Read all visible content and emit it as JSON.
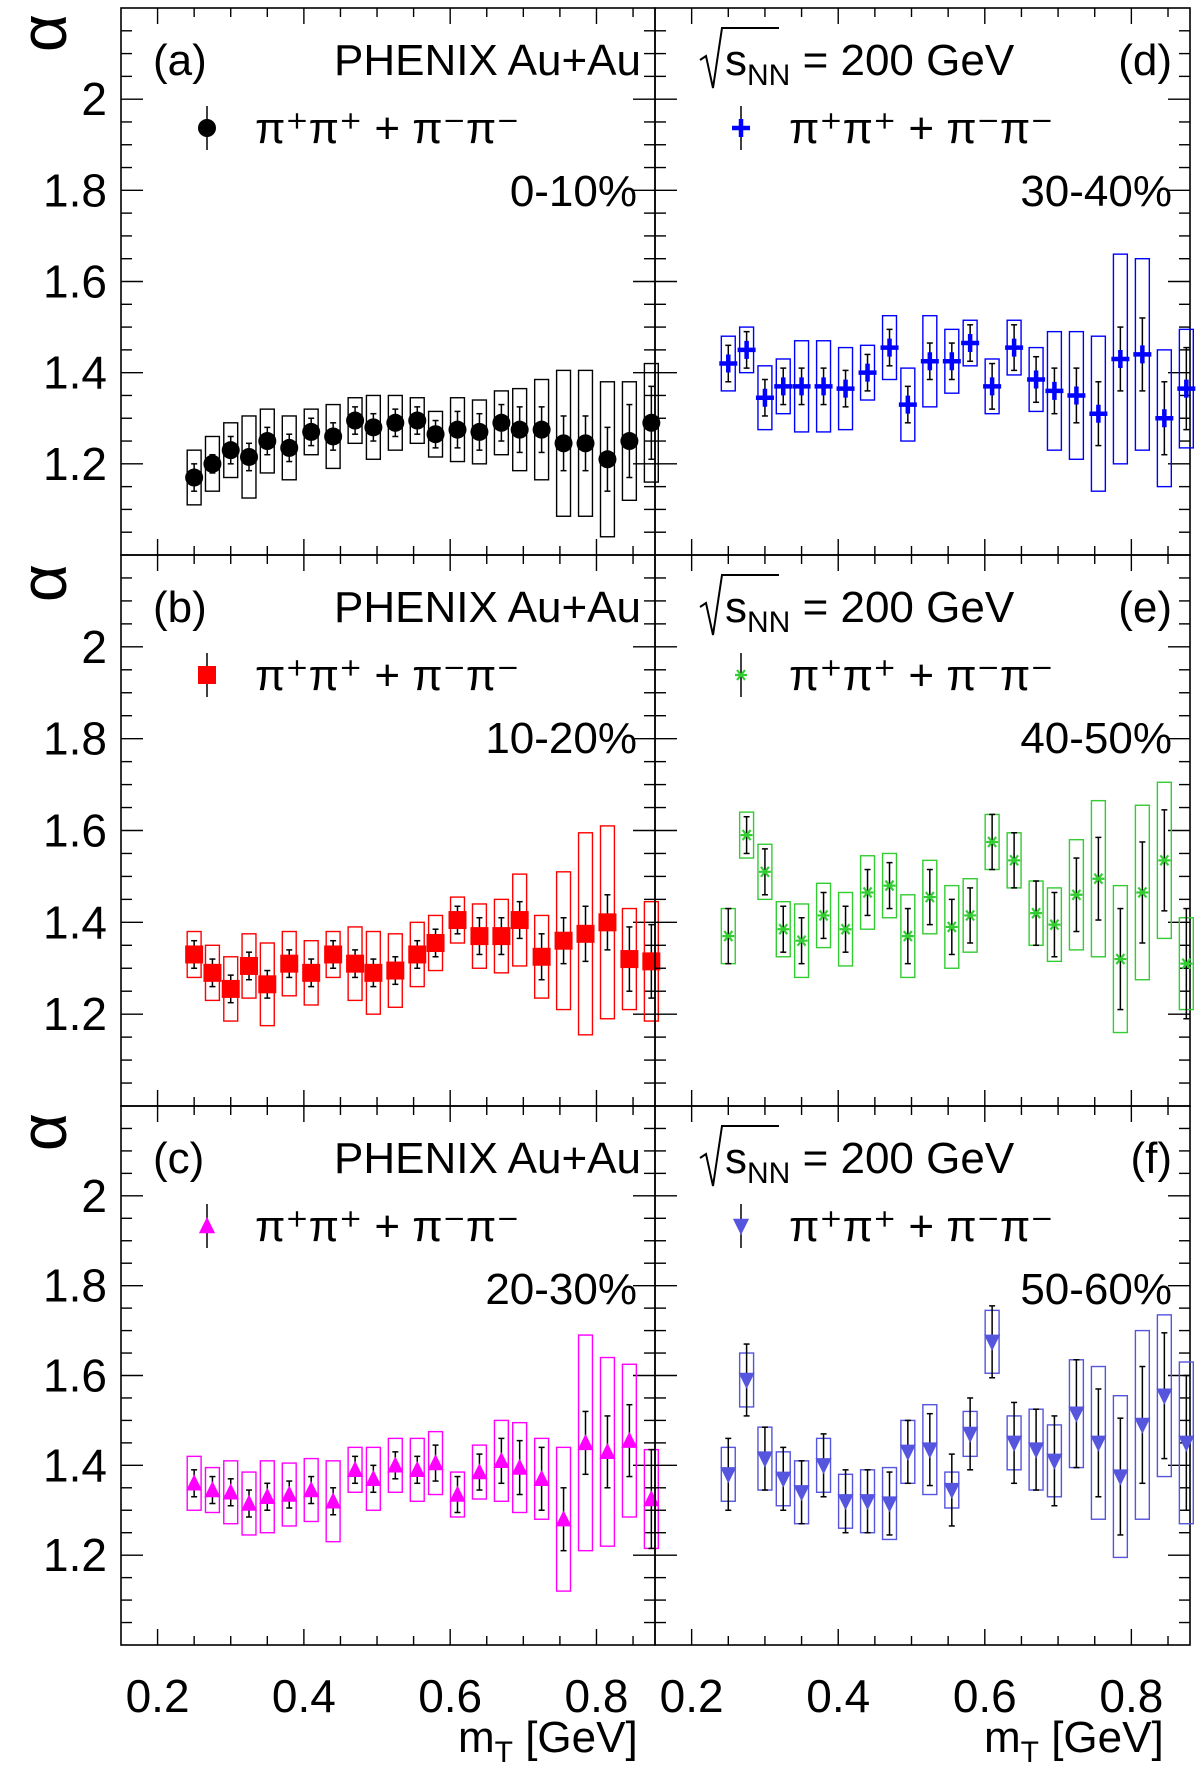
{
  "figure": {
    "ylabel": "α",
    "xlabel": "m",
    "xlabel_sub": "T",
    "xlabel_unit": " [GeV]"
  },
  "chart_data": [
    {
      "type": "scatter",
      "panel": "a",
      "tag": "(a)",
      "header": "PHENIX Au+Au",
      "header_kind": "experiment",
      "legend": "π⁺π⁺ + π⁻π⁻",
      "centrality": "0-10%",
      "marker": "circle",
      "color": "#000000",
      "xlim": [
        0.15,
        0.88
      ],
      "ylim": [
        1.0,
        2.2
      ],
      "x_ticks": [
        "0.2",
        "0.4",
        "0.6",
        "0.8"
      ],
      "y_ticks": [
        "1.2",
        "1.4",
        "1.6",
        "1.8",
        "2"
      ],
      "x": [
        0.25,
        0.275,
        0.3,
        0.325,
        0.35,
        0.38,
        0.41,
        0.44,
        0.47,
        0.495,
        0.525,
        0.555,
        0.58,
        0.61,
        0.64,
        0.67,
        0.695,
        0.725,
        0.755,
        0.785,
        0.815,
        0.845,
        0.875
      ],
      "y": [
        1.17,
        1.2,
        1.23,
        1.215,
        1.25,
        1.235,
        1.27,
        1.26,
        1.295,
        1.28,
        1.29,
        1.295,
        1.265,
        1.275,
        1.27,
        1.29,
        1.275,
        1.275,
        1.245,
        1.245,
        1.21,
        1.25,
        1.29
      ],
      "stat": [
        0.03,
        0.02,
        0.03,
        0.03,
        0.03,
        0.03,
        0.03,
        0.03,
        0.03,
        0.03,
        0.03,
        0.03,
        0.03,
        0.04,
        0.04,
        0.04,
        0.05,
        0.05,
        0.06,
        0.06,
        0.07,
        0.08,
        0.08
      ],
      "syst": [
        0.06,
        0.06,
        0.06,
        0.09,
        0.07,
        0.07,
        0.05,
        0.07,
        0.05,
        0.07,
        0.06,
        0.05,
        0.05,
        0.07,
        0.07,
        0.07,
        0.09,
        0.11,
        0.16,
        0.16,
        0.17,
        0.13,
        0.13
      ]
    },
    {
      "type": "scatter",
      "panel": "b",
      "tag": "(b)",
      "header": "PHENIX Au+Au",
      "header_kind": "experiment",
      "legend": "π⁺π⁺ + π⁻π⁻",
      "centrality": "10-20%",
      "marker": "square",
      "color": "#ff0000",
      "xlim": [
        0.15,
        0.88
      ],
      "ylim": [
        1.0,
        2.2
      ],
      "x_ticks": [
        "0.2",
        "0.4",
        "0.6",
        "0.8"
      ],
      "y_ticks": [
        "1.2",
        "1.4",
        "1.6",
        "1.8",
        "2"
      ],
      "x": [
        0.25,
        0.275,
        0.3,
        0.325,
        0.35,
        0.38,
        0.41,
        0.44,
        0.47,
        0.495,
        0.525,
        0.555,
        0.58,
        0.61,
        0.64,
        0.67,
        0.695,
        0.725,
        0.755,
        0.785,
        0.815,
        0.845,
        0.875
      ],
      "y": [
        1.33,
        1.29,
        1.255,
        1.305,
        1.265,
        1.31,
        1.29,
        1.33,
        1.31,
        1.29,
        1.295,
        1.33,
        1.355,
        1.405,
        1.37,
        1.37,
        1.405,
        1.325,
        1.36,
        1.375,
        1.4,
        1.32,
        1.315
      ],
      "stat": [
        0.03,
        0.03,
        0.03,
        0.03,
        0.03,
        0.03,
        0.03,
        0.03,
        0.03,
        0.03,
        0.03,
        0.03,
        0.03,
        0.03,
        0.04,
        0.04,
        0.04,
        0.05,
        0.05,
        0.06,
        0.06,
        0.07,
        0.08
      ],
      "syst": [
        0.05,
        0.06,
        0.07,
        0.07,
        0.09,
        0.07,
        0.07,
        0.05,
        0.08,
        0.09,
        0.08,
        0.07,
        0.06,
        0.05,
        0.07,
        0.08,
        0.1,
        0.09,
        0.15,
        0.22,
        0.21,
        0.11,
        0.13
      ]
    },
    {
      "type": "scatter",
      "panel": "c",
      "tag": "(c)",
      "header": "PHENIX Au+Au",
      "header_kind": "experiment",
      "legend": "π⁺π⁺ + π⁻π⁻",
      "centrality": "20-30%",
      "marker": "triangle-up",
      "color": "#ff00ff",
      "xlim": [
        0.15,
        0.88
      ],
      "ylim": [
        1.0,
        2.2
      ],
      "x_ticks": [
        "0.2",
        "0.4",
        "0.6",
        "0.8"
      ],
      "y_ticks": [
        "1.2",
        "1.4",
        "1.6",
        "1.8",
        "2"
      ],
      "x": [
        0.25,
        0.275,
        0.3,
        0.325,
        0.35,
        0.38,
        0.41,
        0.44,
        0.47,
        0.495,
        0.525,
        0.555,
        0.58,
        0.61,
        0.64,
        0.67,
        0.695,
        0.725,
        0.755,
        0.785,
        0.815,
        0.845,
        0.875
      ],
      "y": [
        1.36,
        1.345,
        1.34,
        1.315,
        1.33,
        1.335,
        1.345,
        1.32,
        1.39,
        1.37,
        1.4,
        1.39,
        1.405,
        1.335,
        1.385,
        1.41,
        1.395,
        1.37,
        1.28,
        1.45,
        1.43,
        1.455,
        1.325
      ],
      "stat": [
        0.03,
        0.03,
        0.03,
        0.03,
        0.03,
        0.03,
        0.03,
        0.03,
        0.03,
        0.03,
        0.03,
        0.03,
        0.04,
        0.04,
        0.04,
        0.05,
        0.06,
        0.07,
        0.07,
        0.07,
        0.08,
        0.08,
        0.11
      ],
      "syst": [
        0.06,
        0.05,
        0.07,
        0.07,
        0.08,
        0.07,
        0.07,
        0.09,
        0.05,
        0.07,
        0.06,
        0.07,
        0.07,
        0.05,
        0.06,
        0.09,
        0.1,
        0.09,
        0.16,
        0.24,
        0.21,
        0.17,
        0.11
      ]
    },
    {
      "type": "scatter",
      "panel": "d",
      "tag": "(d)",
      "header_parts": {
        "sqrt": "s",
        "sub": "NN",
        "rest": " = 200 GeV"
      },
      "header_kind": "energy",
      "legend": "π⁺π⁺ + π⁻π⁻",
      "centrality": "30-40%",
      "marker": "cross",
      "color": "#0000ff",
      "xlim": [
        0.15,
        0.88
      ],
      "ylim": [
        1.0,
        2.2
      ],
      "x_ticks": [
        "0.2",
        "0.4",
        "0.6",
        "0.8"
      ],
      "y_ticks": [],
      "x": [
        0.25,
        0.275,
        0.3,
        0.325,
        0.35,
        0.38,
        0.41,
        0.44,
        0.47,
        0.495,
        0.525,
        0.555,
        0.58,
        0.61,
        0.64,
        0.67,
        0.695,
        0.725,
        0.755,
        0.785,
        0.815,
        0.845,
        0.875
      ],
      "y": [
        1.42,
        1.45,
        1.345,
        1.37,
        1.37,
        1.37,
        1.365,
        1.4,
        1.455,
        1.33,
        1.425,
        1.425,
        1.465,
        1.37,
        1.455,
        1.385,
        1.36,
        1.35,
        1.31,
        1.43,
        1.44,
        1.3,
        1.365
      ],
      "stat": [
        0.04,
        0.04,
        0.04,
        0.04,
        0.04,
        0.04,
        0.04,
        0.04,
        0.04,
        0.04,
        0.04,
        0.04,
        0.04,
        0.05,
        0.05,
        0.05,
        0.05,
        0.06,
        0.07,
        0.07,
        0.08,
        0.08,
        0.09
      ],
      "syst": [
        0.06,
        0.05,
        0.07,
        0.06,
        0.1,
        0.1,
        0.09,
        0.06,
        0.07,
        0.08,
        0.1,
        0.07,
        0.05,
        0.06,
        0.06,
        0.07,
        0.13,
        0.14,
        0.17,
        0.23,
        0.21,
        0.15,
        0.13
      ]
    },
    {
      "type": "scatter",
      "panel": "e",
      "tag": "(e)",
      "header_parts": {
        "sqrt": "s",
        "sub": "NN",
        "rest": " = 200 GeV"
      },
      "header_kind": "energy",
      "legend": "π⁺π⁺ + π⁻π⁻",
      "centrality": "40-50%",
      "marker": "star",
      "color": "#33cc33",
      "xlim": [
        0.15,
        0.88
      ],
      "ylim": [
        1.0,
        2.2
      ],
      "x_ticks": [
        "0.2",
        "0.4",
        "0.6",
        "0.8"
      ],
      "y_ticks": [],
      "x": [
        0.25,
        0.275,
        0.3,
        0.325,
        0.35,
        0.38,
        0.41,
        0.44,
        0.47,
        0.495,
        0.525,
        0.555,
        0.58,
        0.61,
        0.64,
        0.67,
        0.695,
        0.725,
        0.755,
        0.785,
        0.815,
        0.845,
        0.875
      ],
      "y": [
        1.37,
        1.59,
        1.51,
        1.385,
        1.36,
        1.415,
        1.385,
        1.465,
        1.48,
        1.37,
        1.455,
        1.39,
        1.415,
        1.575,
        1.535,
        1.42,
        1.395,
        1.46,
        1.495,
        1.32,
        1.465,
        1.535,
        1.31
      ],
      "stat": [
        0.06,
        0.04,
        0.05,
        0.05,
        0.05,
        0.05,
        0.05,
        0.05,
        0.05,
        0.06,
        0.06,
        0.06,
        0.06,
        0.06,
        0.06,
        0.07,
        0.07,
        0.08,
        0.09,
        0.11,
        0.11,
        0.11,
        0.12
      ],
      "syst": [
        0.06,
        0.05,
        0.06,
        0.06,
        0.08,
        0.07,
        0.08,
        0.08,
        0.07,
        0.09,
        0.08,
        0.09,
        0.08,
        0.06,
        0.06,
        0.07,
        0.08,
        0.12,
        0.17,
        0.16,
        0.19,
        0.17,
        0.1
      ]
    },
    {
      "type": "scatter",
      "panel": "f",
      "tag": "(f)",
      "header_parts": {
        "sqrt": "s",
        "sub": "NN",
        "rest": " = 200 GeV"
      },
      "header_kind": "energy",
      "legend": "π⁺π⁺ + π⁻π⁻",
      "centrality": "50-60%",
      "marker": "triangle-down",
      "color": "#5555dd",
      "xlim": [
        0.15,
        0.88
      ],
      "ylim": [
        1.0,
        2.2
      ],
      "x_ticks": [
        "0.2",
        "0.4",
        "0.6",
        "0.8"
      ],
      "y_ticks": [],
      "x": [
        0.25,
        0.275,
        0.3,
        0.325,
        0.35,
        0.38,
        0.41,
        0.44,
        0.47,
        0.495,
        0.525,
        0.555,
        0.58,
        0.61,
        0.64,
        0.67,
        0.695,
        0.725,
        0.755,
        0.785,
        0.815,
        0.845,
        0.875
      ],
      "y": [
        1.38,
        1.59,
        1.415,
        1.37,
        1.34,
        1.4,
        1.32,
        1.32,
        1.315,
        1.43,
        1.435,
        1.345,
        1.47,
        1.675,
        1.45,
        1.435,
        1.41,
        1.515,
        1.45,
        1.375,
        1.49,
        1.555,
        1.45
      ],
      "stat": [
        0.08,
        0.08,
        0.07,
        0.07,
        0.07,
        0.07,
        0.07,
        0.07,
        0.07,
        0.07,
        0.08,
        0.08,
        0.08,
        0.08,
        0.09,
        0.09,
        0.1,
        0.12,
        0.12,
        0.13,
        0.13,
        0.14,
        0.15
      ],
      "syst": [
        0.06,
        0.06,
        0.07,
        0.06,
        0.07,
        0.06,
        0.06,
        0.07,
        0.08,
        0.07,
        0.1,
        0.04,
        0.05,
        0.07,
        0.06,
        0.09,
        0.08,
        0.12,
        0.17,
        0.18,
        0.21,
        0.18,
        0.18
      ]
    }
  ]
}
